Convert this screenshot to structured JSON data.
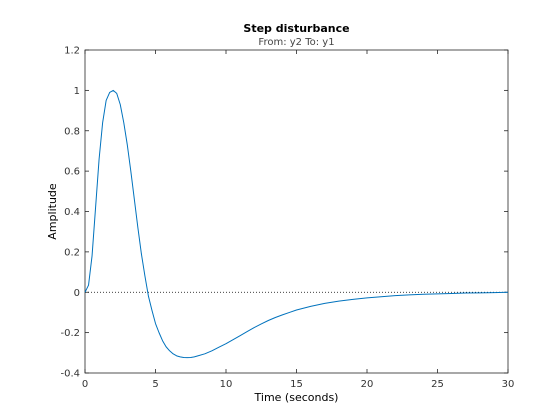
{
  "chart_data": {
    "type": "line",
    "title": "Step disturbance",
    "subtitle": "From: y2  To: y1",
    "xlabel": "Time (seconds)",
    "ylabel": "Amplitude",
    "xlim": [
      0,
      30
    ],
    "ylim": [
      -0.4,
      1.2
    ],
    "xticks": [
      "0",
      "5",
      "10",
      "15",
      "20",
      "25",
      "30"
    ],
    "yticks": [
      "-0.4",
      "-0.2",
      "0",
      "0.2",
      "0.4",
      "0.6",
      "0.8",
      "1",
      "1.2"
    ],
    "grid": false,
    "reference_line": {
      "y": 0,
      "style": "dotted"
    },
    "series": [
      {
        "color": "#0072BD",
        "x": [
          0,
          0.25,
          0.5,
          0.75,
          1.0,
          1.25,
          1.5,
          1.75,
          2.0,
          2.25,
          2.5,
          2.75,
          3.0,
          3.25,
          3.5,
          3.75,
          4.0,
          4.25,
          4.5,
          4.75,
          5.0,
          5.25,
          5.5,
          5.75,
          6.0,
          6.25,
          6.5,
          6.75,
          7.0,
          7.25,
          7.5,
          7.75,
          8.0,
          8.5,
          9.0,
          9.5,
          10.0,
          10.5,
          11.0,
          11.5,
          12.0,
          12.5,
          13.0,
          13.5,
          14.0,
          14.5,
          15.0,
          16.0,
          17.0,
          18.0,
          19.0,
          20.0,
          21.0,
          22.0,
          23.0,
          24.0,
          25.0,
          26.0,
          27.0,
          28.0,
          29.0,
          30.0
        ],
        "y": [
          0,
          0.035,
          0.18,
          0.42,
          0.66,
          0.84,
          0.95,
          0.99,
          1.0,
          0.985,
          0.93,
          0.84,
          0.73,
          0.6,
          0.46,
          0.32,
          0.19,
          0.08,
          -0.02,
          -0.09,
          -0.155,
          -0.2,
          -0.24,
          -0.27,
          -0.29,
          -0.305,
          -0.315,
          -0.32,
          -0.323,
          -0.324,
          -0.323,
          -0.32,
          -0.315,
          -0.305,
          -0.29,
          -0.272,
          -0.255,
          -0.235,
          -0.215,
          -0.195,
          -0.175,
          -0.157,
          -0.14,
          -0.125,
          -0.112,
          -0.1,
          -0.088,
          -0.07,
          -0.055,
          -0.044,
          -0.035,
          -0.028,
          -0.022,
          -0.017,
          -0.013,
          -0.01,
          -0.008,
          -0.006,
          -0.004,
          -0.003,
          -0.002,
          0.0
        ]
      }
    ]
  }
}
